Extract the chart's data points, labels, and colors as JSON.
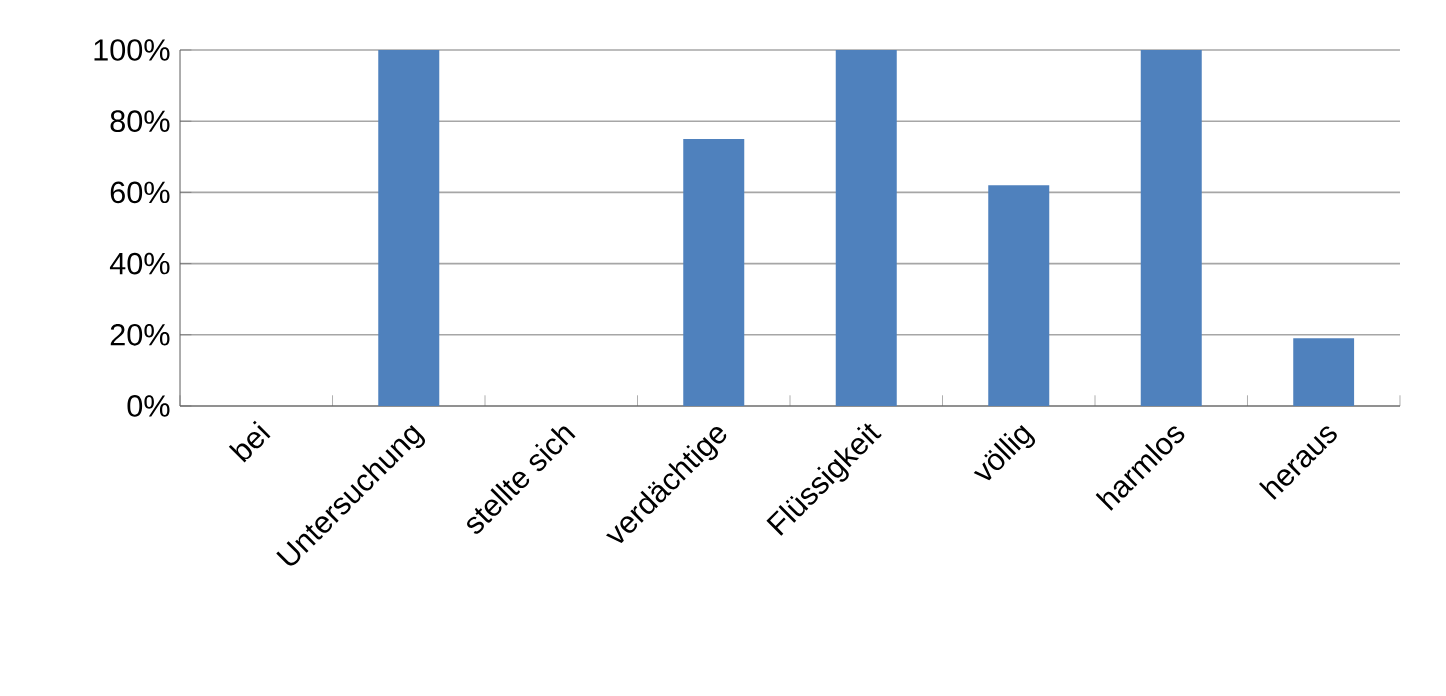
{
  "chart_data": {
    "type": "bar",
    "categories": [
      "bei",
      "Untersuchung",
      "stellte sich",
      "verdächtige",
      "Flüssigkeit",
      "völlig",
      "harmlos",
      "heraus"
    ],
    "values": [
      0,
      100,
      0,
      75,
      100,
      62,
      100,
      19
    ],
    "color": "#4f81bd",
    "ylim": [
      0,
      100
    ],
    "yticks": [
      {
        "value": 0,
        "label": "0%"
      },
      {
        "value": 20,
        "label": "20%"
      },
      {
        "value": 40,
        "label": "40%"
      },
      {
        "value": 60,
        "label": "60%"
      },
      {
        "value": 80,
        "label": "80%"
      },
      {
        "value": 100,
        "label": "100%"
      }
    ],
    "grid": "y"
  }
}
